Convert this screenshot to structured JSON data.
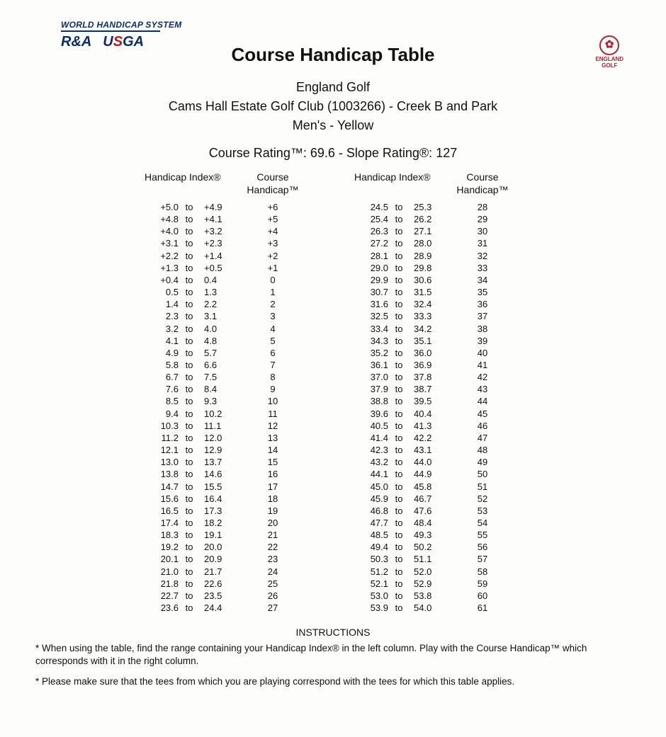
{
  "brand": {
    "whs": "WORLD HANDICAP SYSTEM",
    "randa": "R&A",
    "usga_u": "U",
    "usga_s": "S",
    "usga_ga": "GA",
    "england_golf_label": "ENGLAND\nGOLF"
  },
  "title": "Course Handicap Table",
  "org": "England Golf",
  "club_line": "Cams Hall Estate Golf Club (1003266) - Creek B and Park",
  "tees_line": "Men's - Yellow",
  "ratings_line": "Course Rating™: 69.6  - Slope Rating®: 127",
  "column_headers": {
    "handicap_index": "Handicap Index®",
    "course_handicap": "Course Handicap™"
  },
  "to_label": "to",
  "left_rows": [
    {
      "lo": "+5.0",
      "hi": "+4.9",
      "ch": "+6"
    },
    {
      "lo": "+4.8",
      "hi": "+4.1",
      "ch": "+5"
    },
    {
      "lo": "+4.0",
      "hi": "+3.2",
      "ch": "+4"
    },
    {
      "lo": "+3.1",
      "hi": "+2.3",
      "ch": "+3"
    },
    {
      "lo": "+2.2",
      "hi": "+1.4",
      "ch": "+2"
    },
    {
      "lo": "+1.3",
      "hi": "+0.5",
      "ch": "+1"
    },
    {
      "lo": "+0.4",
      "hi": "0.4",
      "ch": "0"
    },
    {
      "lo": "0.5",
      "hi": "1.3",
      "ch": "1"
    },
    {
      "lo": "1.4",
      "hi": "2.2",
      "ch": "2"
    },
    {
      "lo": "2.3",
      "hi": "3.1",
      "ch": "3"
    },
    {
      "lo": "3.2",
      "hi": "4.0",
      "ch": "4"
    },
    {
      "lo": "4.1",
      "hi": "4.8",
      "ch": "5"
    },
    {
      "lo": "4.9",
      "hi": "5.7",
      "ch": "6"
    },
    {
      "lo": "5.8",
      "hi": "6.6",
      "ch": "7"
    },
    {
      "lo": "6.7",
      "hi": "7.5",
      "ch": "8"
    },
    {
      "lo": "7.6",
      "hi": "8.4",
      "ch": "9"
    },
    {
      "lo": "8.5",
      "hi": "9.3",
      "ch": "10"
    },
    {
      "lo": "9.4",
      "hi": "10.2",
      "ch": "11"
    },
    {
      "lo": "10.3",
      "hi": "11.1",
      "ch": "12"
    },
    {
      "lo": "11.2",
      "hi": "12.0",
      "ch": "13"
    },
    {
      "lo": "12.1",
      "hi": "12.9",
      "ch": "14"
    },
    {
      "lo": "13.0",
      "hi": "13.7",
      "ch": "15"
    },
    {
      "lo": "13.8",
      "hi": "14.6",
      "ch": "16"
    },
    {
      "lo": "14.7",
      "hi": "15.5",
      "ch": "17"
    },
    {
      "lo": "15.6",
      "hi": "16.4",
      "ch": "18"
    },
    {
      "lo": "16.5",
      "hi": "17.3",
      "ch": "19"
    },
    {
      "lo": "17.4",
      "hi": "18.2",
      "ch": "20"
    },
    {
      "lo": "18.3",
      "hi": "19.1",
      "ch": "21"
    },
    {
      "lo": "19.2",
      "hi": "20.0",
      "ch": "22"
    },
    {
      "lo": "20.1",
      "hi": "20.9",
      "ch": "23"
    },
    {
      "lo": "21.0",
      "hi": "21.7",
      "ch": "24"
    },
    {
      "lo": "21.8",
      "hi": "22.6",
      "ch": "25"
    },
    {
      "lo": "22.7",
      "hi": "23.5",
      "ch": "26"
    },
    {
      "lo": "23.6",
      "hi": "24.4",
      "ch": "27"
    }
  ],
  "right_rows": [
    {
      "lo": "24.5",
      "hi": "25.3",
      "ch": "28"
    },
    {
      "lo": "25.4",
      "hi": "26.2",
      "ch": "29"
    },
    {
      "lo": "26.3",
      "hi": "27.1",
      "ch": "30"
    },
    {
      "lo": "27.2",
      "hi": "28.0",
      "ch": "31"
    },
    {
      "lo": "28.1",
      "hi": "28.9",
      "ch": "32"
    },
    {
      "lo": "29.0",
      "hi": "29.8",
      "ch": "33"
    },
    {
      "lo": "29.9",
      "hi": "30.6",
      "ch": "34"
    },
    {
      "lo": "30.7",
      "hi": "31.5",
      "ch": "35"
    },
    {
      "lo": "31.6",
      "hi": "32.4",
      "ch": "36"
    },
    {
      "lo": "32.5",
      "hi": "33.3",
      "ch": "37"
    },
    {
      "lo": "33.4",
      "hi": "34.2",
      "ch": "38"
    },
    {
      "lo": "34.3",
      "hi": "35.1",
      "ch": "39"
    },
    {
      "lo": "35.2",
      "hi": "36.0",
      "ch": "40"
    },
    {
      "lo": "36.1",
      "hi": "36.9",
      "ch": "41"
    },
    {
      "lo": "37.0",
      "hi": "37.8",
      "ch": "42"
    },
    {
      "lo": "37.9",
      "hi": "38.7",
      "ch": "43"
    },
    {
      "lo": "38.8",
      "hi": "39.5",
      "ch": "44"
    },
    {
      "lo": "39.6",
      "hi": "40.4",
      "ch": "45"
    },
    {
      "lo": "40.5",
      "hi": "41.3",
      "ch": "46"
    },
    {
      "lo": "41.4",
      "hi": "42.2",
      "ch": "47"
    },
    {
      "lo": "42.3",
      "hi": "43.1",
      "ch": "48"
    },
    {
      "lo": "43.2",
      "hi": "44.0",
      "ch": "49"
    },
    {
      "lo": "44.1",
      "hi": "44.9",
      "ch": "50"
    },
    {
      "lo": "45.0",
      "hi": "45.8",
      "ch": "51"
    },
    {
      "lo": "45.9",
      "hi": "46.7",
      "ch": "52"
    },
    {
      "lo": "46.8",
      "hi": "47.6",
      "ch": "53"
    },
    {
      "lo": "47.7",
      "hi": "48.4",
      "ch": "54"
    },
    {
      "lo": "48.5",
      "hi": "49.3",
      "ch": "55"
    },
    {
      "lo": "49.4",
      "hi": "50.2",
      "ch": "56"
    },
    {
      "lo": "50.3",
      "hi": "51.1",
      "ch": "57"
    },
    {
      "lo": "51.2",
      "hi": "52.0",
      "ch": "58"
    },
    {
      "lo": "52.1",
      "hi": "52.9",
      "ch": "59"
    },
    {
      "lo": "53.0",
      "hi": "53.8",
      "ch": "60"
    },
    {
      "lo": "53.9",
      "hi": "54.0",
      "ch": "61"
    }
  ],
  "instructions_title": "INSTRUCTIONS",
  "instruction_1": "* When using the table, find the range containing your Handicap Index® in the left column. Play with the Course Handicap™ which corresponds with it in the right column.",
  "instruction_2": "* Please make sure that the tees from which you are playing correspond with the tees for which this table applies."
}
